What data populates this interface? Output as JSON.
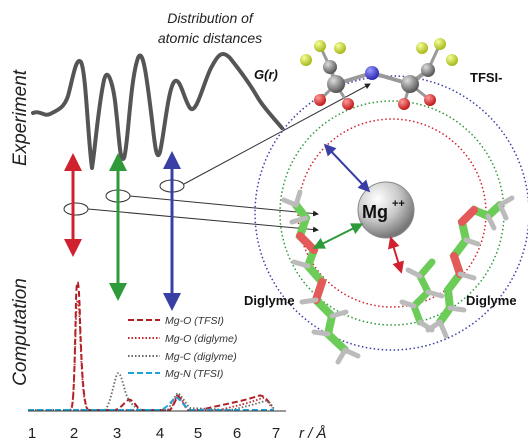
{
  "caption": {
    "line1": "Distribution of",
    "line2": "atomic distances"
  },
  "experiment_label": "Experiment",
  "computation_label": "Computation",
  "gr_label": "G(r)",
  "ion_label": "Mg",
  "ion_charge": "++",
  "tfsi_label": "TFSI-",
  "diglyme_left": "Diglyme",
  "diglyme_right": "Diglyme",
  "x_axis": {
    "ticks": [
      "1",
      "2",
      "3",
      "4",
      "5",
      "6",
      "7"
    ],
    "label": "r / Å"
  },
  "legend": [
    {
      "label": "Mg-O (TFSI)",
      "color": "#b01e23",
      "style": "dashed"
    },
    {
      "label": "Mg-O (diglyme)",
      "color": "#c2272d",
      "style": "dotted"
    },
    {
      "label": "Mg-C (diglyme)",
      "color": "#666666",
      "style": "dotted"
    },
    {
      "label": "Mg-N (TFSI)",
      "color": "#1fa2d8",
      "style": "dashed"
    }
  ],
  "arrow_colors": {
    "red": "#d0222e",
    "green": "#2e9a3a",
    "blue": "#3a3fa5"
  },
  "icons": [
    "mg-ion-sphere-icon",
    "tfsi-molecule-icon",
    "diglyme-molecule-icon"
  ]
}
